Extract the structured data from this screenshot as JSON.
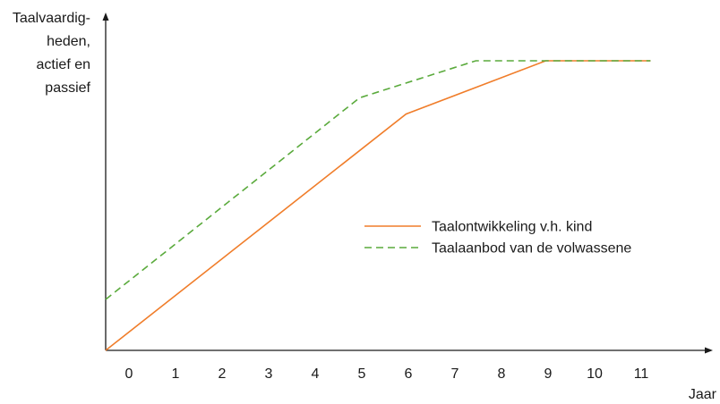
{
  "chart_data": {
    "type": "line",
    "title": "",
    "ylabel_lines": [
      "Taalvaardig-",
      "heden,",
      "actief en",
      "passief"
    ],
    "xlabel": "Jaar",
    "xlim": [
      -0.5,
      12
    ],
    "ylim": [
      0,
      100
    ],
    "x_ticks": [
      0,
      1,
      2,
      3,
      4,
      5,
      6,
      7,
      8,
      9,
      10,
      11
    ],
    "y_ticks": [],
    "grid": false,
    "legend_position": "center-right",
    "series": [
      {
        "name": "Taalontwikkeling v.h. kind",
        "style": "solid",
        "color": "#f07d2a",
        "points": [
          [
            -0.5,
            0
          ],
          [
            5.95,
            81.6
          ],
          [
            8.95,
            100
          ],
          [
            11.2,
            100
          ]
        ]
      },
      {
        "name": "Taalaanbod van de volwassene",
        "style": "dashed",
        "color": "#5aaa3c",
        "points": [
          [
            -0.5,
            17.6
          ],
          [
            4.95,
            87.2
          ],
          [
            7.45,
            100
          ],
          [
            11.2,
            100
          ]
        ]
      }
    ]
  }
}
